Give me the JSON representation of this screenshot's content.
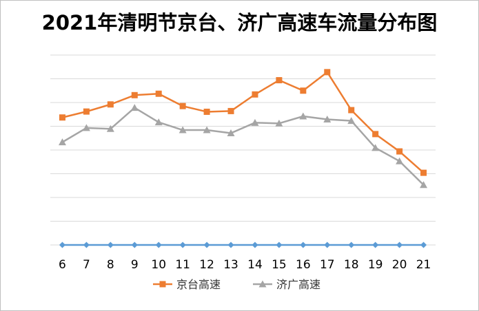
{
  "chart_data": {
    "type": "line",
    "title": "2021年清明节京台、济广高速车流量分布图",
    "xlabel": "",
    "ylabel": "",
    "categories": [
      "6",
      "7",
      "8",
      "9",
      "10",
      "11",
      "12",
      "13",
      "14",
      "15",
      "16",
      "17",
      "18",
      "19",
      "20",
      "21"
    ],
    "ylim": [
      0,
      8
    ],
    "grid": true,
    "legend_position": "bottom",
    "series": [
      {
        "name": "京台高速",
        "color": "#ED7D31",
        "marker": "square",
        "values": [
          5.37,
          5.62,
          5.92,
          6.31,
          6.37,
          5.85,
          5.61,
          5.64,
          6.34,
          6.94,
          6.5,
          7.28,
          5.68,
          4.67,
          3.94,
          3.04
        ]
      },
      {
        "name": "济广高速",
        "color": "#A5A5A5",
        "marker": "triangle",
        "values": [
          4.33,
          4.93,
          4.89,
          5.78,
          5.17,
          4.84,
          4.84,
          4.71,
          5.15,
          5.12,
          5.42,
          5.29,
          5.23,
          4.09,
          3.53,
          2.53
        ]
      },
      {
        "name": "",
        "color": "#5B9BD5",
        "marker": "diamond",
        "legend": false,
        "values": [
          0,
          0,
          0,
          0,
          0,
          0,
          0,
          0,
          0,
          0,
          0,
          0,
          0,
          0,
          0,
          0
        ]
      }
    ]
  }
}
